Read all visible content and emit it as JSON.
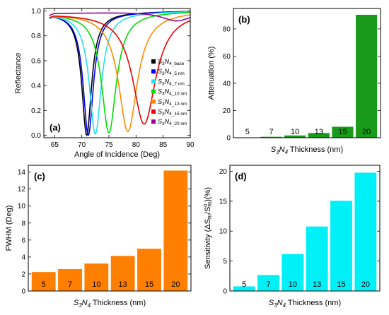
{
  "chart_data": [
    {
      "panel": "(a)",
      "type": "line",
      "xlabel": "Angle of Incidence (Deg)",
      "ylabel": "Reflectance",
      "xlim": [
        63,
        90
      ],
      "ylim": [
        -0.02,
        1.02
      ],
      "xticks": [
        65,
        70,
        75,
        80,
        85,
        90
      ],
      "yticks": [
        0.0,
        0.2,
        0.4,
        0.6,
        0.8,
        1.0
      ],
      "legend_position": "center-right",
      "series": [
        {
          "name": "S3N4_base",
          "color": "#000000",
          "min_angle": 70.9,
          "min_reflectance": 0.0,
          "half_width": 1.1
        },
        {
          "name": "S3N4_5 nm",
          "color": "#0000ee",
          "min_angle": 71.2,
          "min_reflectance": 0.0,
          "half_width": 1.15
        },
        {
          "name": "S3N4_7 nm",
          "color": "#22e0ef",
          "min_angle": 72.5,
          "min_reflectance": 0.01,
          "half_width": 1.35
        },
        {
          "name": "S3N4_10 nm",
          "color": "#00dd00",
          "min_angle": 75.0,
          "min_reflectance": 0.02,
          "half_width": 1.65
        },
        {
          "name": "S3N4_13 nm",
          "color": "#ff8c00",
          "min_angle": 78.5,
          "min_reflectance": 0.03,
          "half_width": 2.1
        },
        {
          "name": "S3N4_15 nm",
          "color": "#ee0000",
          "min_angle": 81.5,
          "min_reflectance": 0.09,
          "half_width": 2.6
        },
        {
          "name": "S3N4_20 nm",
          "color": "#990099",
          "min_angle": 87.5,
          "min_reflectance": 0.92,
          "half_width": 3.5
        }
      ],
      "legend": [
        {
          "main": "S3N4",
          "sub": "_base",
          "color": "#000000"
        },
        {
          "main": "S3N4",
          "sub": "_5 nm",
          "color": "#0000ee"
        },
        {
          "main": "S3N4",
          "sub": "_7 nm",
          "color": "#22e0ef"
        },
        {
          "main": "S3N4",
          "sub": "_10 nm",
          "color": "#00dd00"
        },
        {
          "main": "S3N4",
          "sub": "_13 nm",
          "color": "#ff8c00"
        },
        {
          "main": "S3N4",
          "sub": "_15 nm",
          "color": "#ee0000"
        },
        {
          "main": "S3N4",
          "sub": "_20 nm",
          "color": "#990099"
        }
      ]
    },
    {
      "panel": "(b)",
      "type": "bar",
      "categories": [
        "5",
        "7",
        "10",
        "13",
        "15",
        "20"
      ],
      "values": [
        0.3,
        0.8,
        1.8,
        3.6,
        8.2,
        90.5
      ],
      "xlabel": "S3N4 Thickness (nm)",
      "ylabel": "Attenuation (%)",
      "ylim": [
        0,
        95
      ],
      "yticks": [
        0,
        20,
        40,
        60,
        80
      ],
      "color": "#1a9a1a"
    },
    {
      "panel": "(c)",
      "type": "bar",
      "categories": [
        "5",
        "7",
        "10",
        "13",
        "15",
        "20"
      ],
      "values": [
        2.25,
        2.6,
        3.25,
        4.15,
        5.0,
        14.2
      ],
      "xlabel": "S3N4 Thickness (nm)",
      "ylabel": "FWHM (Deg)",
      "ylim": [
        0,
        14.8
      ],
      "yticks": [
        0,
        2,
        4,
        6,
        8,
        10,
        12,
        14
      ],
      "color": "#ff8000"
    },
    {
      "panel": "(d)",
      "type": "bar",
      "categories": [
        "5",
        "7",
        "10",
        "13",
        "15",
        "20"
      ],
      "values": [
        0.8,
        2.7,
        6.2,
        10.8,
        15.1,
        19.8
      ],
      "xlabel": "S3N4 Thickness (nm)",
      "ylabel": "Sensitivity (ΔSRI/SRI0)(%)",
      "ylim": [
        0,
        21
      ],
      "yticks": [
        0,
        5,
        10,
        15,
        20
      ],
      "color": "#00f0f8"
    }
  ]
}
